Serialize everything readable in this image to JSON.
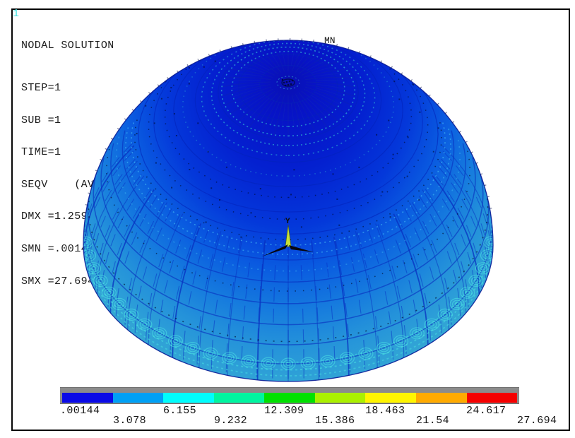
{
  "frame": {
    "plot_id": "1"
  },
  "info_panel": {
    "title": "NODAL SOLUTION",
    "lines": [
      "STEP=1",
      "SUB =1",
      "TIME=1",
      "SEQV    (AVG)",
      "DMX =1.259",
      "SMN =.00144",
      "SMX =27.694"
    ]
  },
  "markers": {
    "min_label": "MN",
    "triad_y_label": "Y"
  },
  "colorbar": {
    "labels": [
      ".00144",
      "3.078",
      "6.155",
      "9.232",
      "12.309",
      "15.386",
      "18.463",
      "21.54",
      "24.617",
      "27.694"
    ],
    "colors": [
      "#0a0ae6",
      "#00a0f5",
      "#00fdfd",
      "#00f5a0",
      "#00e100",
      "#aaf000",
      "#fff500",
      "#ffaa00",
      "#f50000"
    ],
    "strip_color": "#8b8b8b"
  },
  "chart_data": {
    "type": "heatmap",
    "title": "NODAL SOLUTION",
    "result_component": "SEQV (AVG)",
    "step": 1,
    "substep": 1,
    "time": 1,
    "dmx": 1.259,
    "smn": 0.00144,
    "smx": 27.694,
    "contour_levels": [
      0.00144,
      3.078,
      6.155,
      9.232,
      12.309,
      15.386,
      18.463,
      21.54,
      24.617,
      27.694
    ],
    "contour_colors": [
      "#0a0ae6",
      "#00a0f5",
      "#00fdfd",
      "#00f5a0",
      "#00e100",
      "#aaf000",
      "#fff500",
      "#ffaa00",
      "#f50000"
    ],
    "legend_position": "bottom",
    "min_marker": "MN at dome apex",
    "description": "ANSYS von Mises equivalent stress contour on a hemispherical dome; stress is near minimum (dark blue, ~0.00144) at the apex and rises toward the base rim (light blue, ~3-7 of max 27.694)"
  }
}
